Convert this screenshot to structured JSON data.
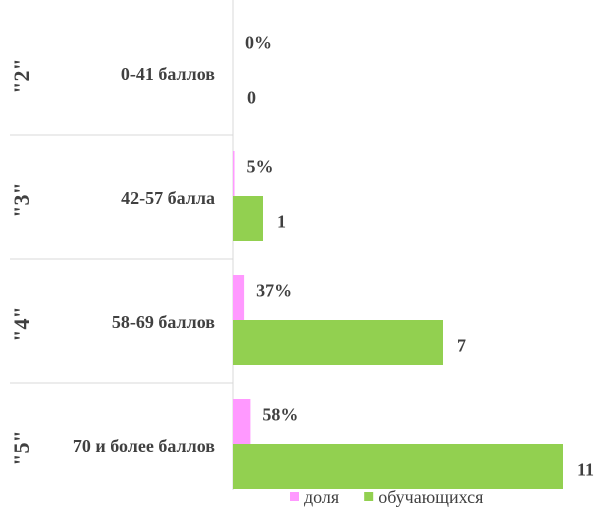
{
  "chart_data": {
    "type": "bar",
    "orientation": "horizontal",
    "categories": [
      [
        "\"2\"",
        "0-41 баллов"
      ],
      [
        "\"3\"",
        "42-57 балла"
      ],
      [
        "\"4\"",
        "58-69 баллов"
      ],
      [
        "\"5\"",
        "70 и более баллов"
      ]
    ],
    "series": [
      {
        "name": "доля",
        "color": "#ff99ff",
        "values": [
          0,
          5,
          37,
          58
        ],
        "value_labels": [
          "0%",
          "5%",
          "37%",
          "58%"
        ],
        "axis": "x2"
      },
      {
        "name": "обучающихся",
        "color": "#92d050",
        "values": [
          0,
          1,
          7,
          11
        ]
      }
    ],
    "xlim": [
      0,
      11
    ],
    "x2lim": [
      0,
      1100
    ],
    "legend": "bottom"
  }
}
